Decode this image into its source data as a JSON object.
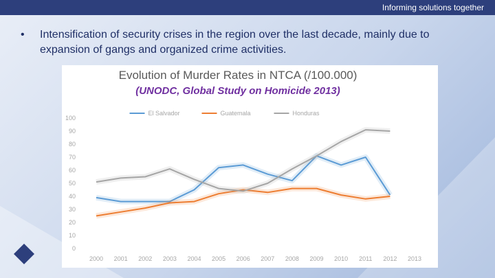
{
  "header": {
    "tagline": "Informing solutions together"
  },
  "bullet": "Intensification of security crises in the region over the last decade, mainly due to expansion of gangs and organized crime activities.",
  "chart_data": {
    "type": "line",
    "title": "Evolution of Murder Rates in NTCA (/100.000)",
    "subtitle": "(UNODC, Global Study on Homicide 2013)",
    "categories": [
      "2000",
      "2001",
      "2002",
      "2003",
      "2004",
      "2005",
      "2006",
      "2007",
      "2008",
      "2009",
      "2010",
      "2011",
      "2012",
      "2013"
    ],
    "series": [
      {
        "name": "El Salvador",
        "color": "#5b9bd5",
        "values": [
          39,
          36,
          36,
          36,
          45,
          62,
          64,
          57,
          52,
          71,
          64,
          70,
          41,
          null
        ]
      },
      {
        "name": "Guatemala",
        "color": "#ed7d31",
        "values": [
          25,
          28,
          31,
          35,
          36,
          42,
          45,
          43,
          46,
          46,
          41,
          38,
          40,
          null
        ]
      },
      {
        "name": "Honduras",
        "color": "#a5a5a5",
        "values": [
          51,
          54,
          55,
          61,
          53,
          46,
          44,
          50,
          61,
          71,
          82,
          91,
          90,
          null
        ]
      }
    ],
    "ylim": [
      0,
      100
    ],
    "yticks": [
      0,
      10,
      20,
      30,
      40,
      50,
      60,
      70,
      80,
      90,
      100
    ],
    "legend": "top"
  }
}
